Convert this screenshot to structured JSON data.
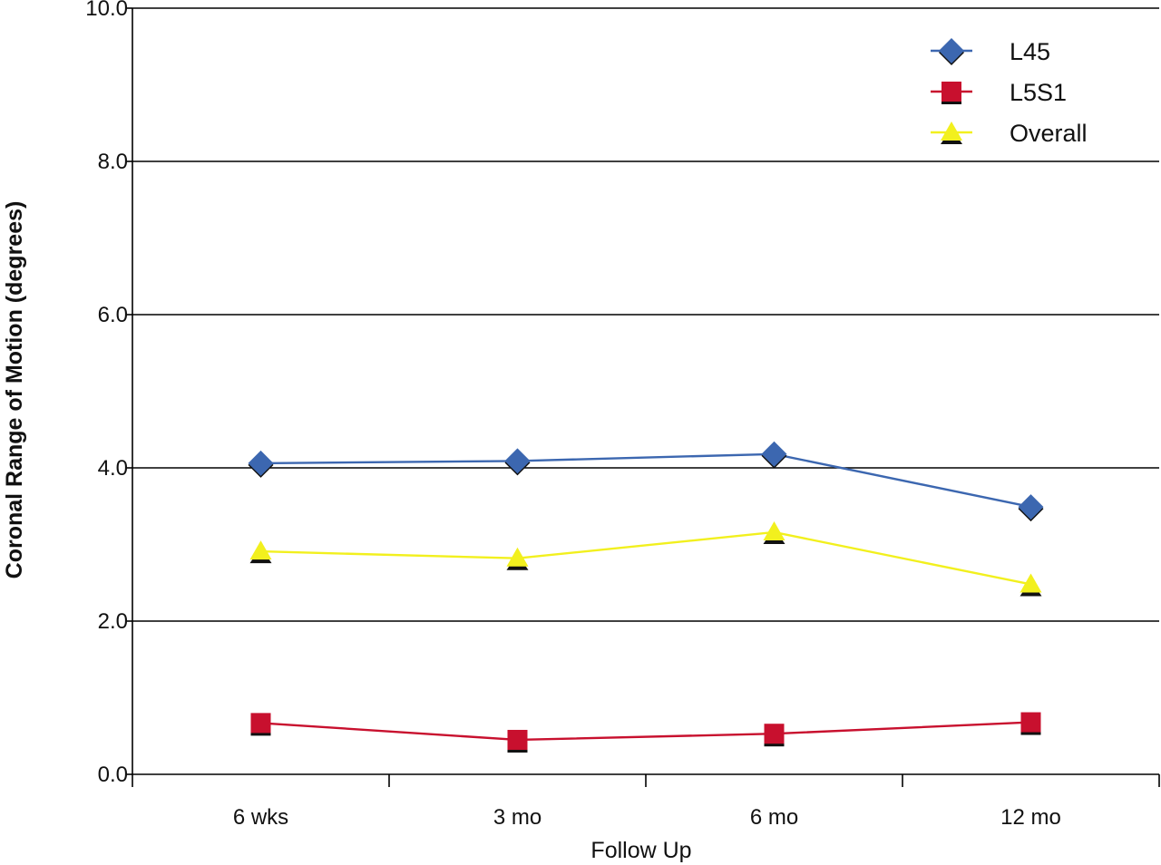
{
  "chart_data": {
    "type": "line",
    "title": "",
    "xlabel": "Follow Up",
    "ylabel": "Coronal Range of Motion (degrees)",
    "categories": [
      "6 wks",
      "3 mo",
      "6 mo",
      "12 mo"
    ],
    "ylim": [
      0,
      10
    ],
    "yticks": [
      "0.0",
      "2.0",
      "4.0",
      "6.0",
      "8.0",
      "10.0"
    ],
    "grid": true,
    "legend_position": "top-right",
    "series": [
      {
        "name": "L45",
        "values": [
          4.06,
          4.09,
          4.18,
          3.49
        ],
        "color": "#3c67b0",
        "marker": "diamond"
      },
      {
        "name": "L5S1",
        "values": [
          0.67,
          0.45,
          0.53,
          0.68
        ],
        "color": "#c8102e",
        "marker": "square"
      },
      {
        "name": "Overall",
        "values": [
          2.91,
          2.82,
          3.16,
          2.48
        ],
        "color": "#f2f01e",
        "marker": "triangle"
      }
    ]
  }
}
